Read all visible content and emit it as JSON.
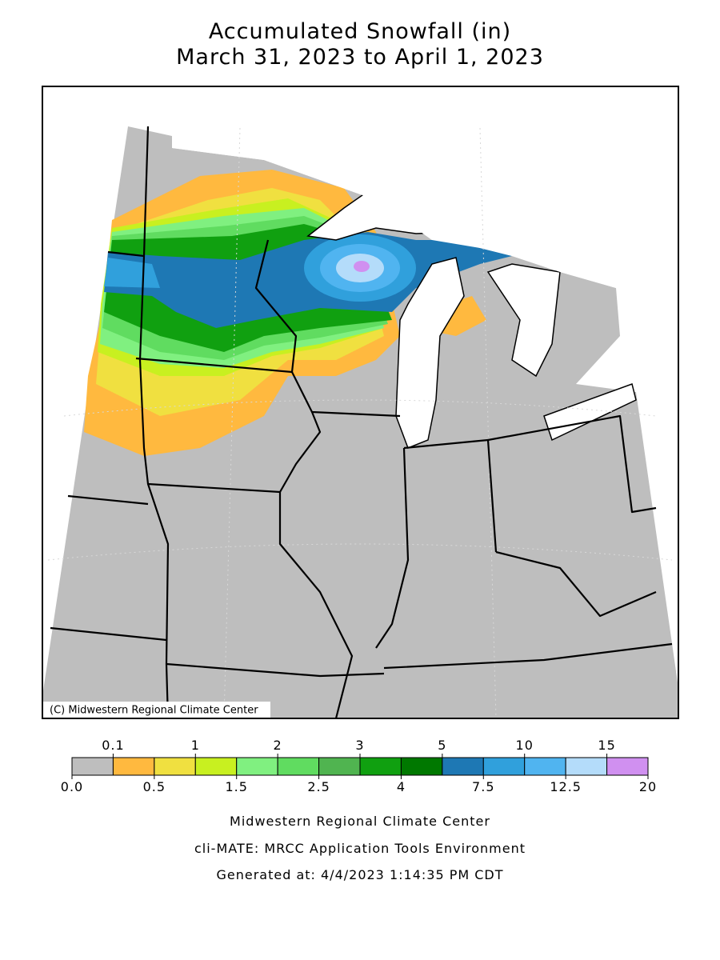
{
  "header": {
    "title": "Accumulated Snowfall (in)",
    "subtitle": "March 31, 2023 to April 1, 2023"
  },
  "map": {
    "credit": "(C) Midwestern Regional Climate Center"
  },
  "legend": {
    "boundaries": [
      {
        "value": 0,
        "label": "0.0"
      },
      0.1,
      0.5,
      1,
      1.5,
      2,
      2.5,
      3,
      4,
      5,
      7.5,
      10,
      12.5,
      15,
      20
    ],
    "colors": [
      "#bebebe",
      "#ffb93f",
      "#f0e040",
      "#c8f020",
      "#80f080",
      "#60dc60",
      "#50b450",
      "#10a010",
      "#007800",
      "#1e78b4",
      "#30a0dc",
      "#50b4f0",
      "#b4dcfa",
      "#d090f0"
    ]
  },
  "footer": {
    "lines": [
      "Midwestern Regional Climate Center",
      "cli-MATE: MRCC Application Tools Environment",
      "Generated at: 4/4/2023 1:14:35 PM CDT"
    ]
  }
}
